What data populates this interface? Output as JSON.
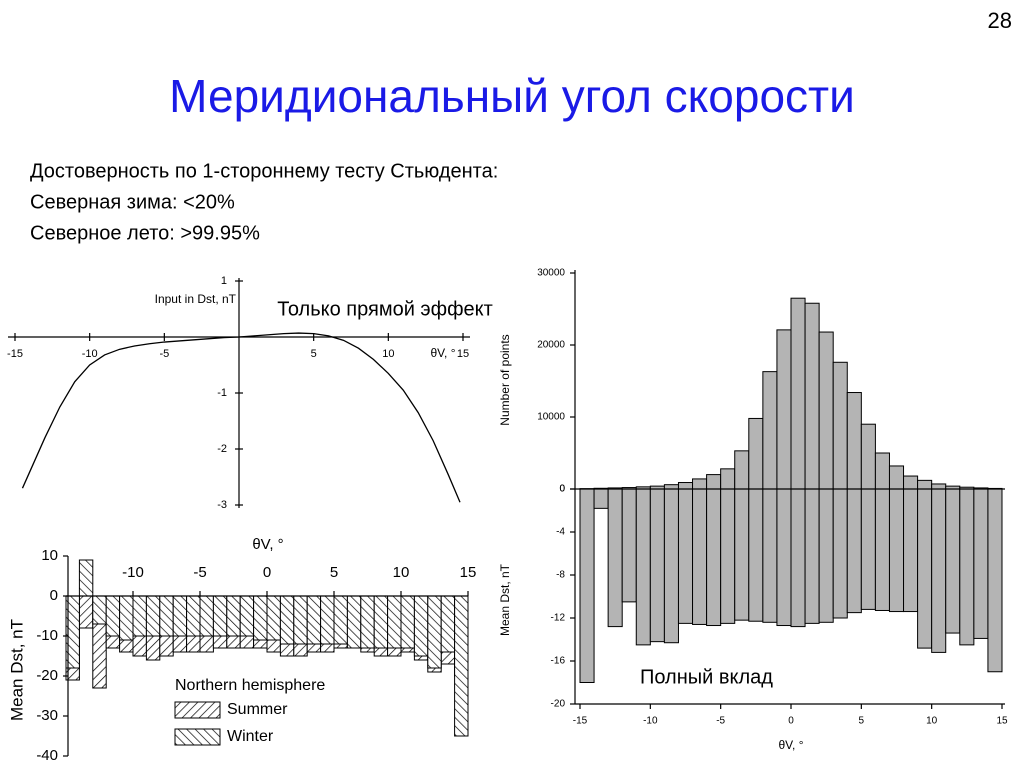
{
  "page_number": "28",
  "title": "Меридиональный угол скорости",
  "text_lines": [
    "Достоверность по 1-стороннему тесту Стьюдента:",
    "Северная зима: <20%",
    "Северное лето: >99.95%"
  ],
  "chart_data": [
    {
      "type": "line",
      "ylabel": "Input in Dst, nT",
      "xlabel": "θV, °",
      "annotation": "Только прямой эффект",
      "xlim": [
        -15,
        15
      ],
      "xticks": [
        -15,
        -10,
        -5,
        5,
        10,
        15
      ],
      "ylim": [
        -3,
        1
      ],
      "yticks": [
        1,
        -1,
        -2,
        -3
      ],
      "color": "#000000",
      "x": [
        -14.5,
        -13,
        -12,
        -11,
        -10,
        -9,
        -8,
        -7,
        -6,
        -5,
        -4,
        -3,
        -2,
        -1,
        0,
        1,
        2,
        3,
        4,
        5,
        6,
        7,
        8,
        9,
        10,
        11,
        12,
        13,
        14,
        14.8
      ],
      "values": [
        -2.7,
        -1.8,
        -1.25,
        -0.8,
        -0.5,
        -0.32,
        -0.22,
        -0.16,
        -0.12,
        -0.09,
        -0.07,
        -0.05,
        -0.03,
        -0.01,
        0,
        0.02,
        0.04,
        0.06,
        0.07,
        0.06,
        0.02,
        -0.06,
        -0.2,
        -0.4,
        -0.65,
        -0.95,
        -1.35,
        -1.85,
        -2.45,
        -2.95
      ]
    },
    {
      "type": "hatched-histogram",
      "ylabel": "Mean Dst, nT",
      "xlabel": "θV, °",
      "legend_title": "Northern hemisphere",
      "xlim": [
        -15,
        15
      ],
      "xticks": [
        -10,
        -5,
        0,
        5,
        10,
        15
      ],
      "ylim": [
        -40,
        10
      ],
      "yticks": [
        10,
        0,
        -10,
        -20,
        -30,
        -40
      ],
      "bins": [
        -15,
        -14,
        -13,
        -12,
        -11,
        -10,
        -9,
        -8,
        -7,
        -6,
        -5,
        -4,
        -3,
        -2,
        -1,
        0,
        1,
        2,
        3,
        4,
        5,
        6,
        7,
        8,
        9,
        10,
        11,
        12,
        13,
        14,
        15
      ],
      "series": [
        {
          "name": "Summer",
          "values": [
            -21,
            -8,
            -23,
            -13,
            -14,
            -15,
            -16,
            -15,
            -14,
            -14,
            -14,
            -13,
            -13,
            -13,
            -13,
            -14,
            -15,
            -15,
            -14,
            -14,
            -13,
            -13,
            -14,
            -15,
            -15,
            -14,
            -16,
            -19,
            -17,
            -20
          ]
        },
        {
          "name": "Winter",
          "values": [
            -18,
            9,
            -7,
            -10,
            -11,
            -10,
            -10,
            -10,
            -10,
            -10,
            -10,
            -10,
            -10,
            -10,
            -11,
            -11,
            -12,
            -12,
            -12,
            -12,
            -12,
            -13,
            -13,
            -13,
            -13,
            -13,
            -15,
            -18,
            -14,
            -35
          ]
        }
      ]
    },
    {
      "type": "histogram",
      "xlabel": "θV, °",
      "annotation": "Полный вклад",
      "color": "#b4b4b4",
      "xlim": [
        -15,
        15
      ],
      "xticks": [
        -15,
        -10,
        -5,
        0,
        5,
        10,
        15
      ],
      "bins": [
        -15,
        -14,
        -13,
        -12,
        -11,
        -10,
        -9,
        -8,
        -7,
        -6,
        -5,
        -4,
        -3,
        -2,
        -1,
        0,
        1,
        2,
        3,
        4,
        5,
        6,
        7,
        8,
        9,
        10,
        11,
        12,
        13,
        14,
        15
      ],
      "panels": [
        {
          "ylabel": "Number of points",
          "ylim": [
            0,
            30000
          ],
          "yticks": [
            0,
            10000,
            20000,
            30000
          ],
          "values": [
            50,
            100,
            150,
            200,
            300,
            400,
            600,
            900,
            1400,
            2000,
            2800,
            5300,
            9800,
            16300,
            22100,
            26500,
            25800,
            21800,
            17600,
            13400,
            9000,
            5000,
            3200,
            1800,
            1200,
            700,
            400,
            250,
            150,
            80
          ]
        },
        {
          "ylabel": "Mean Dst, nT",
          "ylim": [
            -20,
            0
          ],
          "yticks": [
            0,
            -4,
            -8,
            -12,
            -16,
            -20
          ],
          "values": [
            -18,
            -1.8,
            -12.8,
            -10.5,
            -14.5,
            -14.2,
            -14.3,
            -12.5,
            -12.6,
            -12.7,
            -12.5,
            -12.2,
            -12.3,
            -12.4,
            -12.7,
            -12.8,
            -12.5,
            -12.4,
            -12,
            -11.5,
            -11.2,
            -11.3,
            -11.4,
            -11.4,
            -14.8,
            -15.2,
            -13.4,
            -14.5,
            -13.9,
            -17
          ]
        }
      ]
    }
  ]
}
